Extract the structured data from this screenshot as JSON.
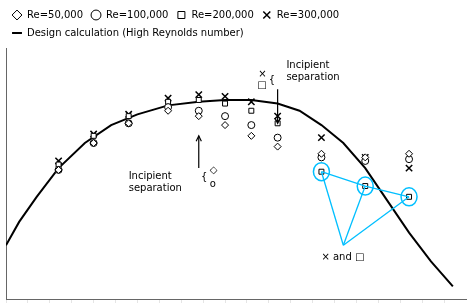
{
  "chart_data": {
    "type": "line",
    "series": [
      {
        "name": "Design calculation (High Reynolds number)",
        "type": "line",
        "color": "#000000",
        "line_style": "solid",
        "x": [
          0.0,
          0.03,
          0.07,
          0.12,
          0.18,
          0.24,
          0.3,
          0.37,
          0.44,
          0.5,
          0.56,
          0.62,
          0.67,
          0.72,
          0.77,
          0.82,
          0.87,
          0.92,
          0.97,
          1.02
        ],
        "values": [
          -0.05,
          0.08,
          0.22,
          0.38,
          0.52,
          0.62,
          0.68,
          0.73,
          0.75,
          0.76,
          0.76,
          0.74,
          0.7,
          0.62,
          0.52,
          0.38,
          0.2,
          0.02,
          -0.14,
          -0.28
        ]
      },
      {
        "name": "Re=50,000",
        "type": "scatter",
        "color": "#000000",
        "marker": "diamond",
        "x": [
          0.12,
          0.2,
          0.28,
          0.37,
          0.44,
          0.5,
          0.56,
          0.62,
          0.72,
          0.82,
          0.92
        ],
        "values": [
          0.37,
          0.52,
          0.63,
          0.7,
          0.67,
          0.62,
          0.56,
          0.5,
          0.46,
          0.44,
          0.46
        ]
      },
      {
        "name": "Re=100,000",
        "type": "scatter",
        "color": "#000000",
        "marker": "circle",
        "x": [
          0.12,
          0.2,
          0.28,
          0.37,
          0.44,
          0.5,
          0.56,
          0.62,
          0.72,
          0.82,
          0.92
        ],
        "values": [
          0.37,
          0.52,
          0.63,
          0.72,
          0.7,
          0.67,
          0.62,
          0.55,
          0.44,
          0.42,
          0.43
        ]
      },
      {
        "name": "Re=200,000",
        "type": "scatter",
        "color": "#000000",
        "marker": "square",
        "x": [
          0.12,
          0.2,
          0.28,
          0.37,
          0.44,
          0.5,
          0.56,
          0.62,
          0.72,
          0.82,
          0.92
        ],
        "values": [
          0.4,
          0.56,
          0.67,
          0.75,
          0.76,
          0.74,
          0.7,
          0.63,
          0.36,
          0.28,
          0.22
        ]
      },
      {
        "name": "Re=300,000",
        "type": "scatter",
        "color": "#000000",
        "marker": "x",
        "x": [
          0.12,
          0.2,
          0.28,
          0.37,
          0.44,
          0.5,
          0.56,
          0.62,
          0.72,
          0.82,
          0.92
        ],
        "values": [
          0.42,
          0.57,
          0.68,
          0.77,
          0.79,
          0.78,
          0.75,
          0.67,
          0.55,
          0.44,
          0.38
        ]
      }
    ],
    "xlim": [
      0.0,
      1.05
    ],
    "ylim": [
      -0.35,
      1.05
    ],
    "xticks": [
      0,
      0.05,
      0.1,
      0.15,
      0.2,
      0.25,
      0.3,
      0.35,
      0.4,
      0.45,
      0.5,
      0.55,
      0.6,
      0.65,
      0.7,
      0.75,
      0.8,
      0.85,
      0.9,
      0.95,
      1
    ],
    "tick_labels": false,
    "grid": false,
    "legend": "upper left",
    "annotations": [
      {
        "text": "Incipient\nseparation",
        "x": 0.64,
        "y": 0.92,
        "arrow": {
          "from": [
            0.62,
            0.82
          ],
          "to": [
            0.62,
            0.63
          ]
        }
      },
      {
        "text": "×",
        "x": 0.595,
        "y": 0.9,
        "align": "right"
      },
      {
        "text": "□",
        "x": 0.595,
        "y": 0.84,
        "align": "right"
      },
      {
        "text": "{",
        "x": 0.6,
        "y": 0.87
      },
      {
        "text": "Incipient\nseparation",
        "x": 0.28,
        "y": 0.3,
        "arrow": {
          "from": [
            0.44,
            0.38
          ],
          "to": [
            0.44,
            0.56
          ]
        }
      },
      {
        "text": "{",
        "x": 0.445,
        "y": 0.33
      },
      {
        "text": "◇",
        "x": 0.465,
        "y": 0.37
      },
      {
        "text": "o",
        "x": 0.465,
        "y": 0.29
      },
      {
        "text": "× and □",
        "x": 0.72,
        "y": -0.12,
        "color": "#00BFFF",
        "triangle": {
          "apex": [
            0.77,
            -0.05
          ],
          "points": [
            [
              0.72,
              0.36
            ],
            [
              0.82,
              0.28
            ],
            [
              0.92,
              0.22
            ]
          ]
        }
      }
    ]
  }
}
